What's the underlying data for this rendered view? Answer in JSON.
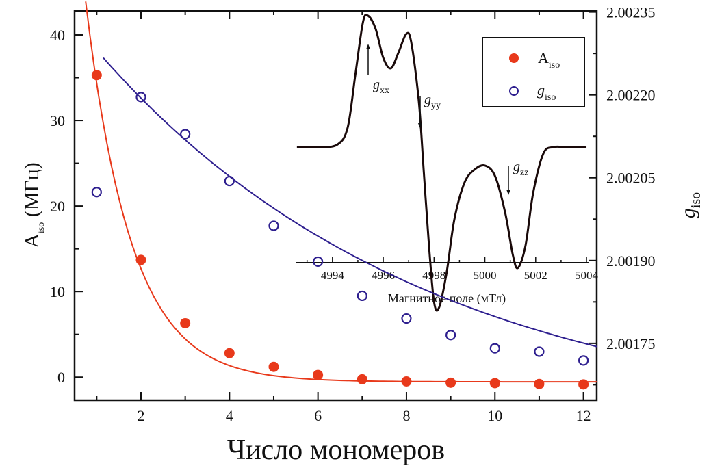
{
  "chart_data": {
    "type": "scatter",
    "title": "",
    "xlabel": "Число мономеров",
    "ylabel_left": {
      "main": "A",
      "sub": "iso",
      "unit": " (МГц)"
    },
    "ylabel_right": {
      "main": "g",
      "sub": "iso"
    },
    "xlim": [
      0.5,
      12.3
    ],
    "ylim_left": [
      -2.7,
      42.8
    ],
    "ylim_right": [
      2.001647,
      2.002352
    ],
    "x_ticks": [
      2,
      4,
      6,
      8,
      10,
      12
    ],
    "x_minor_ticks": [
      1,
      3,
      5,
      7,
      9,
      11
    ],
    "y_left_ticks": [
      0,
      10,
      20,
      30,
      40
    ],
    "y_left_minor_ticks": [
      5,
      15,
      25,
      35
    ],
    "y_right_ticks": [
      "2.00175",
      "2.00190",
      "2.00205",
      "2.00220",
      "2.00235"
    ],
    "y_right_tick_values": [
      2.00175,
      2.0019,
      2.00205,
      2.0022,
      2.00235
    ],
    "y_right_minor_ticks": [
      2.001675,
      2.001825,
      2.001975,
      2.002125,
      2.002275
    ],
    "grid": false,
    "legend_position": "top-right",
    "series": [
      {
        "name": "A_iso",
        "label_main": "A",
        "label_sub": "iso",
        "axis": "left",
        "marker": "filled-circle",
        "color": "#e8391b",
        "x": [
          1,
          2,
          3,
          4,
          5,
          6,
          7,
          8,
          9,
          10,
          11,
          12
        ],
        "values": [
          35.3,
          13.7,
          6.3,
          2.8,
          1.2,
          0.25,
          -0.25,
          -0.5,
          -0.65,
          -0.7,
          -0.8,
          -0.85
        ],
        "fit": {
          "type": "exponential",
          "y0": -0.55,
          "A": 92.0,
          "k": 0.97,
          "x_range": [
            0.75,
            12.3
          ]
        }
      },
      {
        "name": "g_iso",
        "label_main": "g",
        "label_sub": "iso",
        "axis": "right",
        "marker": "open-circle",
        "color": "#2e1f8f",
        "x": [
          1,
          2,
          3,
          4,
          5,
          6,
          7,
          8,
          9,
          10,
          11,
          12
        ],
        "values": [
          2.002024,
          2.002196,
          2.002129,
          2.002044,
          2.001963,
          2.001898,
          2.001836,
          2.001795,
          2.001765,
          2.001741,
          2.001735,
          2.001719
        ],
        "fit": {
          "type": "exponential",
          "y0": 2.001595,
          "A": 0.000785,
          "k": 0.135,
          "x_range": [
            1.15,
            12.3
          ]
        }
      }
    ],
    "inset": {
      "type": "line",
      "xlabel": "Магнитное поле (мТл)",
      "xlim": [
        4992.55,
        5004.08
      ],
      "x_ticks": [
        4994,
        4996,
        4998,
        5000,
        5002,
        5004
      ],
      "x_minor_ticks": [
        4993,
        4995,
        4997,
        4999,
        5001,
        5003
      ],
      "line_color": "#1a0a0a",
      "spectrum": {
        "x": [
          4992.6,
          4993.5,
          4994.2,
          4994.6,
          4994.9,
          4995.2,
          4995.4,
          4995.7,
          4996.0,
          4996.3,
          4996.6,
          4996.9,
          4997.1,
          4997.4,
          4997.6,
          4997.8,
          4998.0,
          4998.2,
          4998.5,
          4998.8,
          4999.2,
          4999.6,
          5000.0,
          5000.4,
          5000.8,
          5001.1,
          5001.3,
          5001.6,
          5001.9,
          5002.3,
          5002.7,
          5003.2,
          5004.0
        ],
        "y": [
          0.0,
          0.0,
          0.02,
          0.15,
          0.55,
          0.95,
          1.0,
          0.9,
          0.68,
          0.6,
          0.72,
          0.86,
          0.8,
          0.35,
          -0.2,
          -0.75,
          -1.18,
          -1.22,
          -0.95,
          -0.55,
          -0.27,
          -0.17,
          -0.14,
          -0.22,
          -0.5,
          -0.82,
          -0.92,
          -0.75,
          -0.35,
          -0.05,
          0.0,
          0.0,
          0.0
        ]
      },
      "annotations": [
        {
          "main": "g",
          "sub": "xx",
          "field": 4995.4,
          "direction": "up"
        },
        {
          "main": "g",
          "sub": "yy",
          "field": 4997.5,
          "direction": "down"
        },
        {
          "main": "g",
          "sub": "zz",
          "field": 5001.2,
          "direction": "down"
        }
      ]
    }
  }
}
